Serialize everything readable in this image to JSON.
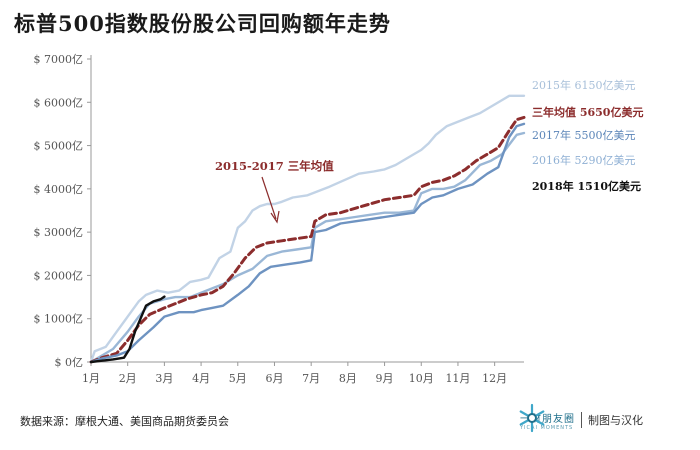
{
  "title": "标普500指数股份股公司回购额年走势",
  "source": "数据来源：摩根大通、美国商品期货委员会",
  "brand": {
    "name": "一财朋友圈",
    "sub": "YICAI MOMENTS",
    "credit": "制图与汉化"
  },
  "colors": {
    "s2015": "#c2d3e6",
    "s2016": "#9ab7d6",
    "s2017": "#6e93c1",
    "s2018": "#111111",
    "avg": "#8c2d2d"
  },
  "chart_data": {
    "type": "line",
    "title": "标普500指数股份股公司回购额年走势",
    "xlabel": "",
    "ylabel": "",
    "x_range": [
      0,
      11.8
    ],
    "ylim": [
      0,
      7000
    ],
    "xticks": [
      "1月",
      "2月",
      "3月",
      "4月",
      "5月",
      "6月",
      "7月",
      "8月",
      "9月",
      "10月",
      "11月",
      "12月"
    ],
    "yticks": [
      {
        "value": 0,
        "label": "$ 0亿"
      },
      {
        "value": 1000,
        "label": "$ 1000亿"
      },
      {
        "value": 2000,
        "label": "$ 2000亿"
      },
      {
        "value": 3000,
        "label": "$ 3000亿"
      },
      {
        "value": 4000,
        "label": "$ 4000亿"
      },
      {
        "value": 5000,
        "label": "$ 5000亿"
      },
      {
        "value": 6000,
        "label": "$ 6000亿"
      },
      {
        "value": 7000,
        "label": "$ 7000亿"
      }
    ],
    "annotation": "2015-2017 三年均值",
    "series": [
      {
        "key": "s2015",
        "label": "2015年 6150亿美元",
        "x": [
          0,
          0.1,
          0.4,
          0.7,
          1.0,
          1.3,
          1.5,
          1.8,
          2.1,
          2.4,
          2.7,
          3.0,
          3.2,
          3.5,
          3.8,
          4.0,
          4.2,
          4.4,
          4.6,
          4.8,
          5.0,
          5.2,
          5.5,
          5.9,
          6.2,
          6.5,
          6.9,
          7.3,
          7.7,
          8.0,
          8.3,
          8.7,
          9.0,
          9.2,
          9.4,
          9.7,
          10.0,
          10.3,
          10.6,
          10.9,
          11.2,
          11.4,
          11.6,
          11.8
        ],
        "values": [
          0,
          250,
          350,
          700,
          1050,
          1400,
          1550,
          1650,
          1600,
          1650,
          1850,
          1900,
          1950,
          2400,
          2550,
          3100,
          3250,
          3500,
          3600,
          3650,
          3650,
          3700,
          3800,
          3850,
          3950,
          4050,
          4200,
          4350,
          4400,
          4450,
          4550,
          4750,
          4900,
          5050,
          5250,
          5450,
          5550,
          5650,
          5750,
          5900,
          6050,
          6150,
          6150,
          6150
        ]
      },
      {
        "key": "s2016",
        "label": "2016年 5290亿美元",
        "x": [
          0,
          0.3,
          0.6,
          1.0,
          1.3,
          1.6,
          2.0,
          2.3,
          2.7,
          3.0,
          3.3,
          3.6,
          4.0,
          4.4,
          4.8,
          5.2,
          5.6,
          6.0,
          6.1,
          6.4,
          6.8,
          7.2,
          7.6,
          8.0,
          8.4,
          8.8,
          9.0,
          9.3,
          9.6,
          9.9,
          10.2,
          10.6,
          10.9,
          11.2,
          11.6,
          11.8
        ],
        "values": [
          0,
          150,
          300,
          700,
          1050,
          1350,
          1450,
          1500,
          1500,
          1600,
          1700,
          1800,
          2000,
          2150,
          2450,
          2550,
          2600,
          2650,
          3100,
          3250,
          3300,
          3350,
          3400,
          3450,
          3450,
          3500,
          3900,
          4000,
          4000,
          4050,
          4200,
          4550,
          4650,
          4800,
          5250,
          5290
        ]
      },
      {
        "key": "avg",
        "label": "三年均值 5650亿美元",
        "dashed": true,
        "x": [
          0,
          0.3,
          0.7,
          1.0,
          1.3,
          1.6,
          2.0,
          2.3,
          2.6,
          3.0,
          3.3,
          3.6,
          3.9,
          4.2,
          4.5,
          4.8,
          5.2,
          5.6,
          6.0,
          6.1,
          6.4,
          6.8,
          7.2,
          7.6,
          8.0,
          8.4,
          8.8,
          9.0,
          9.3,
          9.6,
          9.9,
          10.2,
          10.5,
          10.8,
          11.1,
          11.4,
          11.6,
          11.8
        ],
        "values": [
          0,
          100,
          200,
          500,
          850,
          1100,
          1250,
          1350,
          1450,
          1550,
          1600,
          1750,
          2050,
          2400,
          2650,
          2750,
          2800,
          2850,
          2900,
          3250,
          3400,
          3450,
          3550,
          3650,
          3750,
          3800,
          3850,
          4050,
          4150,
          4200,
          4300,
          4450,
          4650,
          4800,
          4950,
          5350,
          5600,
          5650
        ]
      },
      {
        "key": "s2017",
        "label": "2017年 5500亿美元",
        "x": [
          0,
          0.3,
          0.7,
          1.0,
          1.3,
          1.7,
          2.0,
          2.4,
          2.8,
          3.0,
          3.3,
          3.6,
          4.0,
          4.3,
          4.6,
          4.9,
          5.3,
          5.7,
          6.0,
          6.1,
          6.4,
          6.8,
          7.2,
          7.6,
          8.0,
          8.4,
          8.8,
          9.0,
          9.3,
          9.6,
          10.0,
          10.4,
          10.8,
          11.1,
          11.4,
          11.6,
          11.8
        ],
        "values": [
          0,
          80,
          150,
          250,
          500,
          800,
          1050,
          1150,
          1150,
          1200,
          1250,
          1300,
          1550,
          1750,
          2050,
          2200,
          2250,
          2300,
          2350,
          3000,
          3050,
          3200,
          3250,
          3300,
          3350,
          3400,
          3450,
          3650,
          3800,
          3850,
          4000,
          4100,
          4350,
          4500,
          5200,
          5450,
          5500
        ]
      },
      {
        "key": "s2018",
        "label": "2018年 1510亿美元",
        "x": [
          0,
          0.3,
          0.6,
          0.9,
          1.05,
          1.2,
          1.35,
          1.5,
          1.7,
          1.9,
          2.0
        ],
        "values": [
          0,
          30,
          60,
          100,
          300,
          700,
          1000,
          1300,
          1400,
          1450,
          1510
        ]
      }
    ]
  }
}
